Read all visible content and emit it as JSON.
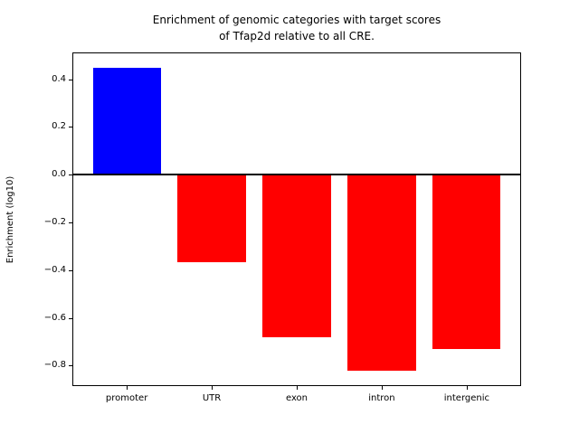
{
  "figure": {
    "title_line1": "Enrichment of genomic categories with target scores",
    "title_line2": "of Tfap2d relative to all CRE.",
    "ylabel": "Enrichment (log10)"
  },
  "chart_data": {
    "type": "bar",
    "title": "Enrichment of genomic categories with target scores of Tfap2d relative to all CRE.",
    "xlabel": "",
    "ylabel": "Enrichment (log10)",
    "categories": [
      "promoter",
      "UTR",
      "exon",
      "intron",
      "intergenic"
    ],
    "values": [
      0.448,
      -0.366,
      -0.682,
      -0.822,
      -0.732
    ],
    "bar_colors": [
      "#0000ff",
      "#ff0000",
      "#ff0000",
      "#ff0000",
      "#ff0000"
    ],
    "positive_color": "#0000ff",
    "negative_color": "#ff0000",
    "yticks": [
      0.4,
      0.2,
      0.0,
      -0.2,
      -0.4,
      -0.6,
      -0.8
    ],
    "ylim": [
      -0.886,
      0.512
    ],
    "xlim": [
      -0.64,
      4.64
    ],
    "bar_width": 0.8,
    "grid": false,
    "legend": "none",
    "zero_line": true
  }
}
